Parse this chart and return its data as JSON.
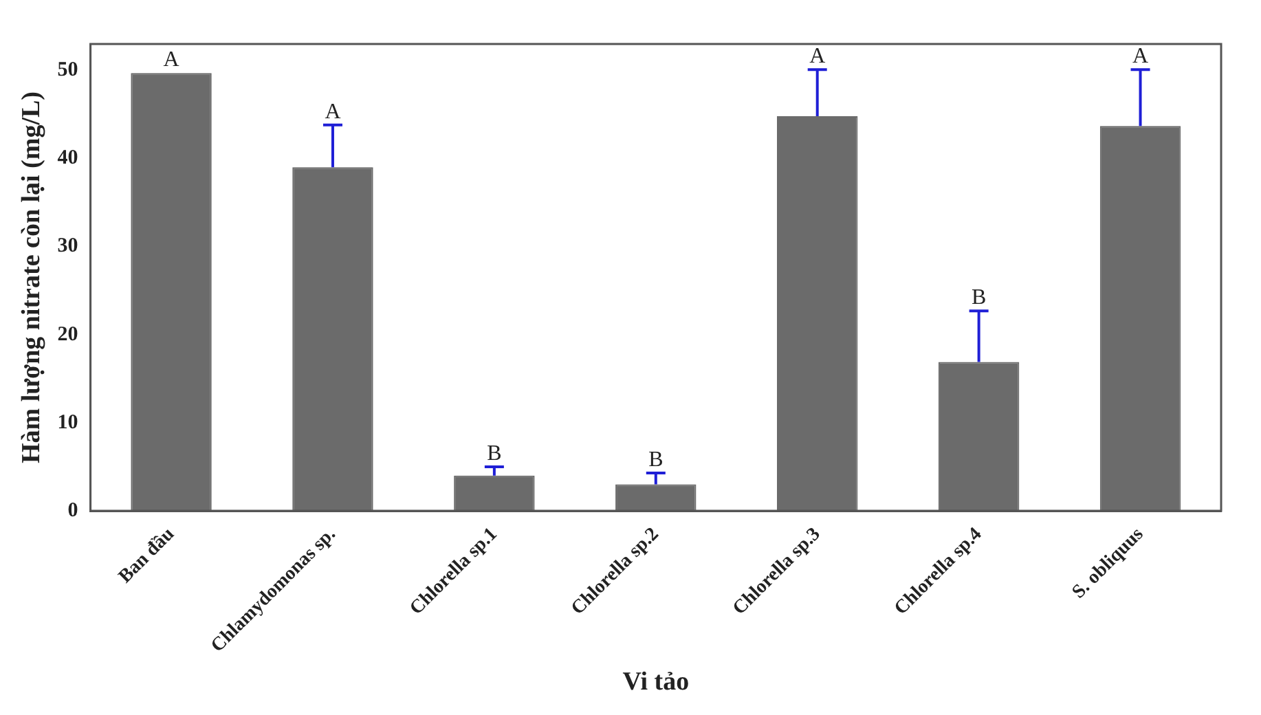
{
  "chart_data": {
    "type": "bar",
    "xlabel": "Vi tảo",
    "ylabel": "Hàm lượng nitrate còn lại (mg/L)",
    "categories": [
      "Ban đầu",
      "Chlamydomonas sp.",
      "Chlorella sp.1",
      "Chlorella sp.2",
      "Chlorella sp.3",
      "Chlorella sp.4",
      "S. obliquus"
    ],
    "values": [
      49.7,
      39.0,
      4.0,
      3.0,
      44.8,
      16.9,
      43.7
    ],
    "errors": [
      null,
      [
        39.0,
        43.8
      ],
      [
        4.0,
        5.0
      ],
      [
        3.0,
        4.3
      ],
      [
        44.8,
        50.1
      ],
      [
        16.9,
        22.7
      ],
      [
        43.7,
        50.1
      ]
    ],
    "color": "#6b6b6b",
    "ylim": [
      0,
      53
    ],
    "yticks": [
      0,
      10,
      20,
      30,
      40,
      50
    ],
    "grid": false,
    "legend": false,
    "annotations": [
      "A",
      "A",
      "B",
      "B",
      "A",
      "B",
      "A"
    ]
  }
}
